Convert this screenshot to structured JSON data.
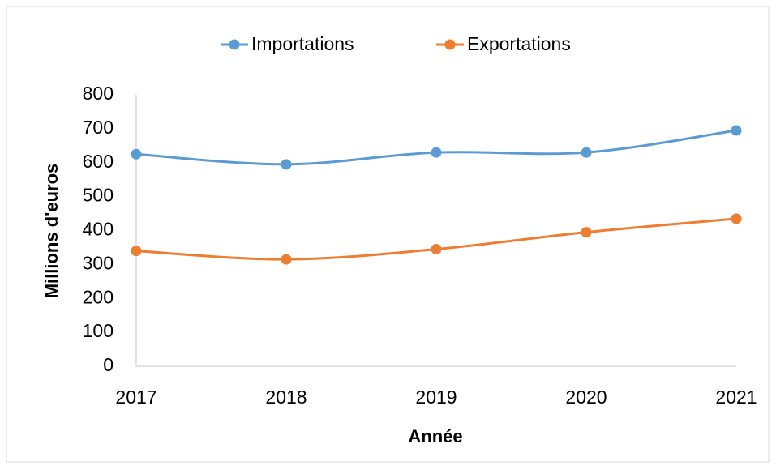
{
  "chart_data": {
    "type": "line",
    "x_label": "Année",
    "y_label": "Millions d'euros",
    "categories": [
      "2017",
      "2018",
      "2019",
      "2020",
      "2021"
    ],
    "series": [
      {
        "name": "Importations",
        "color": "#5b9bd5",
        "values": [
          625,
          595,
          630,
          630,
          695
        ]
      },
      {
        "name": "Exportations",
        "color": "#ed7d31",
        "values": [
          340,
          315,
          345,
          395,
          435
        ]
      }
    ],
    "ylim": [
      0,
      800
    ],
    "yticks": [
      0,
      100,
      200,
      300,
      400,
      500,
      600,
      700,
      800
    ],
    "grid": false,
    "smooth": true,
    "legend": "top"
  }
}
